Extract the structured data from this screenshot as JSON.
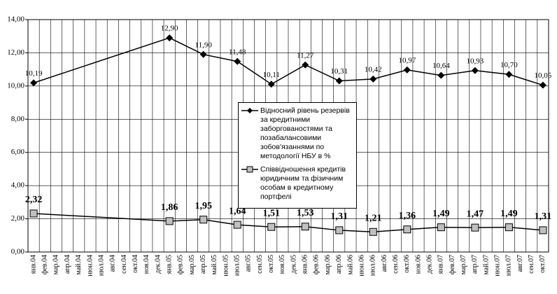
{
  "chart_data": {
    "type": "line",
    "categories": [
      "янв.04",
      "фев.04",
      "мар.04",
      "апр.04",
      "май.04",
      "июн.04",
      "июл.04",
      "авг.04",
      "сен.04",
      "окт.04",
      "ноя.04",
      "дек.04",
      "янв.05",
      "фев.05",
      "мар.05",
      "апр.05",
      "май.05",
      "июн.05",
      "июл.05",
      "авг.05",
      "сен.05",
      "окт.05",
      "ноя.05",
      "дек.05",
      "янв.06",
      "фев.06",
      "мар.06",
      "апр.06",
      "май.06",
      "июн.06",
      "июл.06",
      "авг.06",
      "сен.06",
      "окт.06",
      "ноя.06",
      "дек.06",
      "янв.07",
      "фев.07",
      "мар.07",
      "апр.07",
      "май.07",
      "июн.07",
      "июл.07",
      "авг.07",
      "сен.07",
      "окт.07"
    ],
    "series": [
      {
        "name": "Відносний рівень резервів за кредитними заборгованостями та позабалансовими зобов'язаннями по методології НБУ в %",
        "color": "#000000",
        "marker": "diamond",
        "values": [
          10.19,
          null,
          null,
          null,
          null,
          null,
          null,
          null,
          null,
          null,
          null,
          null,
          12.9,
          null,
          null,
          11.9,
          null,
          null,
          11.48,
          null,
          null,
          10.11,
          null,
          null,
          11.27,
          null,
          null,
          10.31,
          null,
          null,
          10.42,
          null,
          null,
          10.97,
          null,
          null,
          10.64,
          null,
          null,
          10.93,
          null,
          null,
          10.7,
          null,
          null,
          10.05
        ],
        "value_labels": [
          "10,19",
          null,
          null,
          null,
          null,
          null,
          null,
          null,
          null,
          null,
          null,
          null,
          "12,90",
          null,
          null,
          "11,90",
          null,
          null,
          "11,48",
          null,
          null,
          "10,11",
          null,
          null,
          "11,27",
          null,
          null,
          "10,31",
          null,
          null,
          "10,42",
          null,
          null,
          "10,97",
          null,
          null,
          "10,64",
          null,
          null,
          "10,93",
          null,
          null,
          "10,70",
          null,
          null,
          "10,05"
        ]
      },
      {
        "name": "Співвідношення кредитів юридичним та фізичним особам в кредитному портфелі",
        "color": "#c0c0c0",
        "marker": "square",
        "values": [
          2.32,
          null,
          null,
          null,
          null,
          null,
          null,
          null,
          null,
          null,
          null,
          null,
          1.86,
          null,
          null,
          1.95,
          null,
          null,
          1.64,
          null,
          null,
          1.51,
          null,
          null,
          1.53,
          null,
          null,
          1.31,
          null,
          null,
          1.21,
          null,
          null,
          1.36,
          null,
          null,
          1.49,
          null,
          null,
          1.47,
          null,
          null,
          1.49,
          null,
          null,
          1.31
        ],
        "value_labels": [
          "2,32",
          null,
          null,
          null,
          null,
          null,
          null,
          null,
          null,
          null,
          null,
          null,
          "1,86",
          null,
          null,
          "1,95",
          null,
          null,
          "1,64",
          null,
          null,
          "1,51",
          null,
          null,
          "1,53",
          null,
          null,
          "1,31",
          null,
          null,
          "1,21",
          null,
          null,
          "1,36",
          null,
          null,
          "1,49",
          null,
          null,
          "1,47",
          null,
          null,
          "1,49",
          null,
          null,
          "1,31"
        ]
      }
    ],
    "ylim": [
      0,
      14
    ],
    "yticks": [
      {
        "value": 0,
        "label": "0,00"
      },
      {
        "value": 2,
        "label": "2,00"
      },
      {
        "value": 4,
        "label": "4,00"
      },
      {
        "value": 6,
        "label": "6,00"
      },
      {
        "value": 8,
        "label": "8,00"
      },
      {
        "value": 10,
        "label": "10,00"
      },
      {
        "value": 12,
        "label": "12,00"
      },
      {
        "value": 14,
        "label": "14,00"
      }
    ],
    "grid": true,
    "connect_gaps": true,
    "legend": "center"
  }
}
